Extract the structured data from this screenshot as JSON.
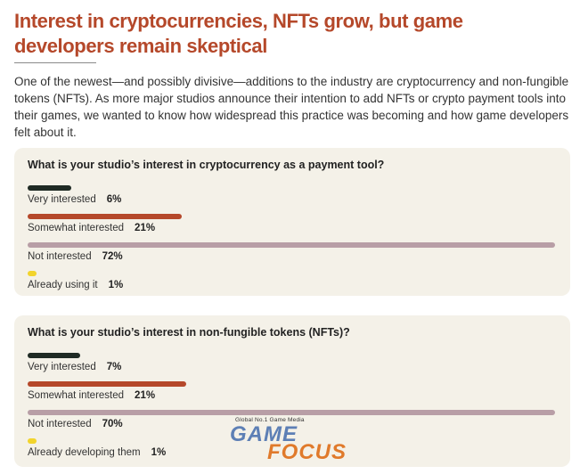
{
  "headline": "Interest in cryptocurrencies, NFTs grow, but game developers remain skeptical",
  "intro": "One of the newest—and possibly divisive—additions to the industry are cryptocurrency and non-fungible tokens (NFTs). As more major studios announce their intention to add NFTs or crypto payment tools into their games, we wanted to know how widespread this practice was becoming and how game developers felt about it.",
  "chart_data": [
    {
      "type": "bar",
      "title": "What is your studio’s interest in cryptocurrency as a payment tool?",
      "categories": [
        "Very interested",
        "Somewhat interested",
        "Not interested",
        "Already using it"
      ],
      "values": [
        6,
        21,
        72,
        1
      ],
      "value_labels": [
        "6%",
        "21%",
        "72%",
        "1%"
      ],
      "colors": [
        "#1f2a24",
        "#b5482a",
        "#b89ea6",
        "#f2d42c"
      ],
      "unit": "%",
      "xlim": [
        0,
        72
      ]
    },
    {
      "type": "bar",
      "title": "What is your studio’s interest in non-fungible tokens (NFTs)?",
      "categories": [
        "Very interested",
        "Somewhat interested",
        "Not interested",
        "Already developing them"
      ],
      "values": [
        7,
        21,
        70,
        1
      ],
      "value_labels": [
        "7%",
        "21%",
        "70%",
        "1%"
      ],
      "colors": [
        "#1f2a24",
        "#b5482a",
        "#b89ea6",
        "#f2d42c"
      ],
      "unit": "%",
      "xlim": [
        0,
        70
      ]
    }
  ],
  "watermark": {
    "tagline": "Global No.1 Game Media",
    "word1": "GAME",
    "word2": "FOCUS"
  }
}
